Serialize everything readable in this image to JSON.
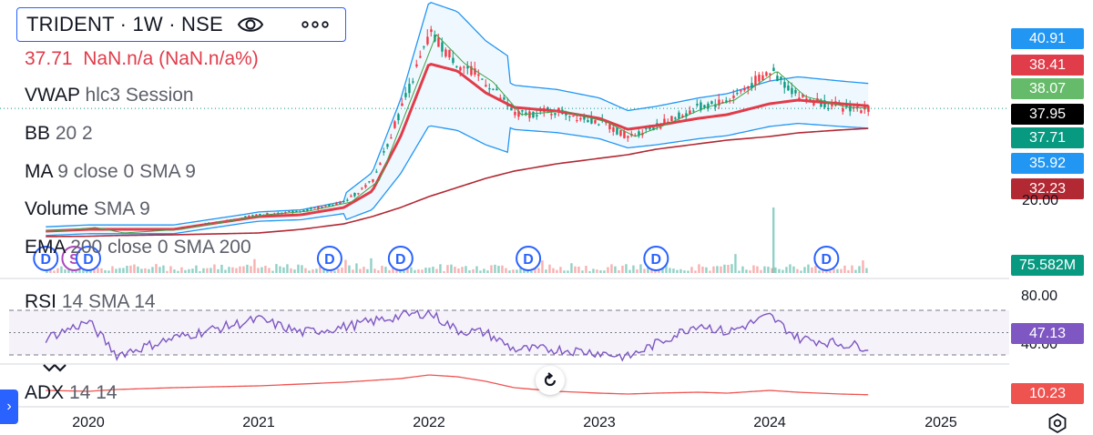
{
  "header": {
    "symbol_line": "TRIDENT · 1W · NSE",
    "change_line": "37.71  NaN.n/a (NaN.n/a%)",
    "eye_icon": "eye-icon",
    "more_icon": "more-dots-icon"
  },
  "indicators": [
    {
      "name": "VWAP",
      "params": "hlc3 Session"
    },
    {
      "name": "BB",
      "params": "20 2"
    },
    {
      "name": "MA",
      "params": "9 close 0 SMA 9"
    },
    {
      "name": "Volume",
      "params": "SMA 9"
    },
    {
      "name": "EMA",
      "params": "200 close 0 SMA 200"
    }
  ],
  "rsi_legend": {
    "name": "RSI",
    "params": "14 SMA 14"
  },
  "adx_legend": {
    "name": "ADX",
    "params": "14 14"
  },
  "price_badges": [
    {
      "value": "40.91",
      "color": "#2196f3"
    },
    {
      "value": "38.41",
      "color": "#e03c4a"
    },
    {
      "value": "38.07",
      "color": "#66bb6a"
    },
    {
      "value": "37.95",
      "color": "#000000"
    },
    {
      "value": "37.71",
      "color": "#089981"
    },
    {
      "value": "35.92",
      "color": "#2196f3"
    },
    {
      "value": "32.23",
      "color": "#b22833"
    }
  ],
  "partial_axis_label": "20.00",
  "volume_badge": {
    "value": "75.582M",
    "color": "#089981"
  },
  "rsi_axis": {
    "upper": "80.00",
    "lower": "40.00"
  },
  "rsi_badge": {
    "value": "47.13",
    "color": "#7e57c2"
  },
  "adx_badge": {
    "value": "10.23",
    "color": "#ef5350"
  },
  "dividend_marker_letter": "D",
  "split_marker_letter": "S",
  "x_axis_labels": [
    "2020",
    "2021",
    "2022",
    "2023",
    "2024",
    "2025"
  ],
  "chart_data": {
    "type": "line",
    "symbol": "TRIDENT",
    "timeframe": "1W",
    "exchange": "NSE",
    "x": [
      "2019-10",
      "2020-01",
      "2020-03",
      "2020-07",
      "2021-01",
      "2021-04",
      "2021-07",
      "2021-09",
      "2021-11",
      "2022-01",
      "2022-03",
      "2022-05",
      "2022-07",
      "2022-10",
      "2023-01",
      "2023-03",
      "2023-05",
      "2023-08",
      "2023-10",
      "2024-01",
      "2024-03",
      "2024-06",
      "2024-08"
    ],
    "series": [
      {
        "name": "Price",
        "values": [
          4,
          5,
          3.5,
          4.5,
          8.5,
          9.5,
          12,
          18,
          38,
          58,
          50,
          45,
          36,
          37,
          34,
          30,
          33,
          38,
          40,
          48,
          41,
          38,
          37.71
        ]
      },
      {
        "name": "BB",
        "values": [
          4,
          4.5,
          4.5,
          4.5,
          8,
          8.5,
          10.5,
          15,
          30,
          50,
          48,
          42,
          38,
          37,
          35,
          32,
          33,
          35,
          36,
          39,
          40,
          39,
          38.41
        ]
      },
      {
        "name": "EMA",
        "values": [
          2.5,
          2.6,
          2.8,
          3,
          3.5,
          4.5,
          6,
          8,
          10.5,
          13.5,
          16,
          18.5,
          20.5,
          22.5,
          24,
          25,
          26.5,
          28,
          29,
          30,
          31,
          31.8,
          32.23
        ]
      }
    ],
    "ylim": [
      0,
      60
    ],
    "price_scale_labels": [
      "40.91",
      "38.41",
      "38.07",
      "37.95",
      "37.71",
      "35.92",
      "32.23",
      "20.00"
    ],
    "volume_last": "75.582M",
    "rsi": {
      "values": [
        55,
        70,
        40,
        55,
        72,
        60,
        65,
        70,
        75,
        78,
        62,
        60,
        45,
        45,
        42,
        38,
        50,
        68,
        60,
        75,
        55,
        50,
        47.13
      ],
      "upper_band": 80,
      "lower_band": 40
    },
    "adx": {
      "values": [
        15,
        14,
        16,
        18,
        20,
        22,
        24,
        26,
        28,
        32,
        30,
        25,
        18,
        14,
        12,
        11,
        12,
        13,
        12,
        15,
        13,
        11,
        10.23
      ]
    },
    "markers": [
      {
        "letter": "D",
        "date": "2019-10"
      },
      {
        "letter": "S",
        "date": "2019-12"
      },
      {
        "letter": "D",
        "date": "2020-01"
      },
      {
        "letter": "D",
        "date": "2021-06"
      },
      {
        "letter": "D",
        "date": "2021-11"
      },
      {
        "letter": "D",
        "date": "2022-08"
      },
      {
        "letter": "D",
        "date": "2023-05"
      },
      {
        "letter": "D",
        "date": "2024-05"
      }
    ]
  }
}
